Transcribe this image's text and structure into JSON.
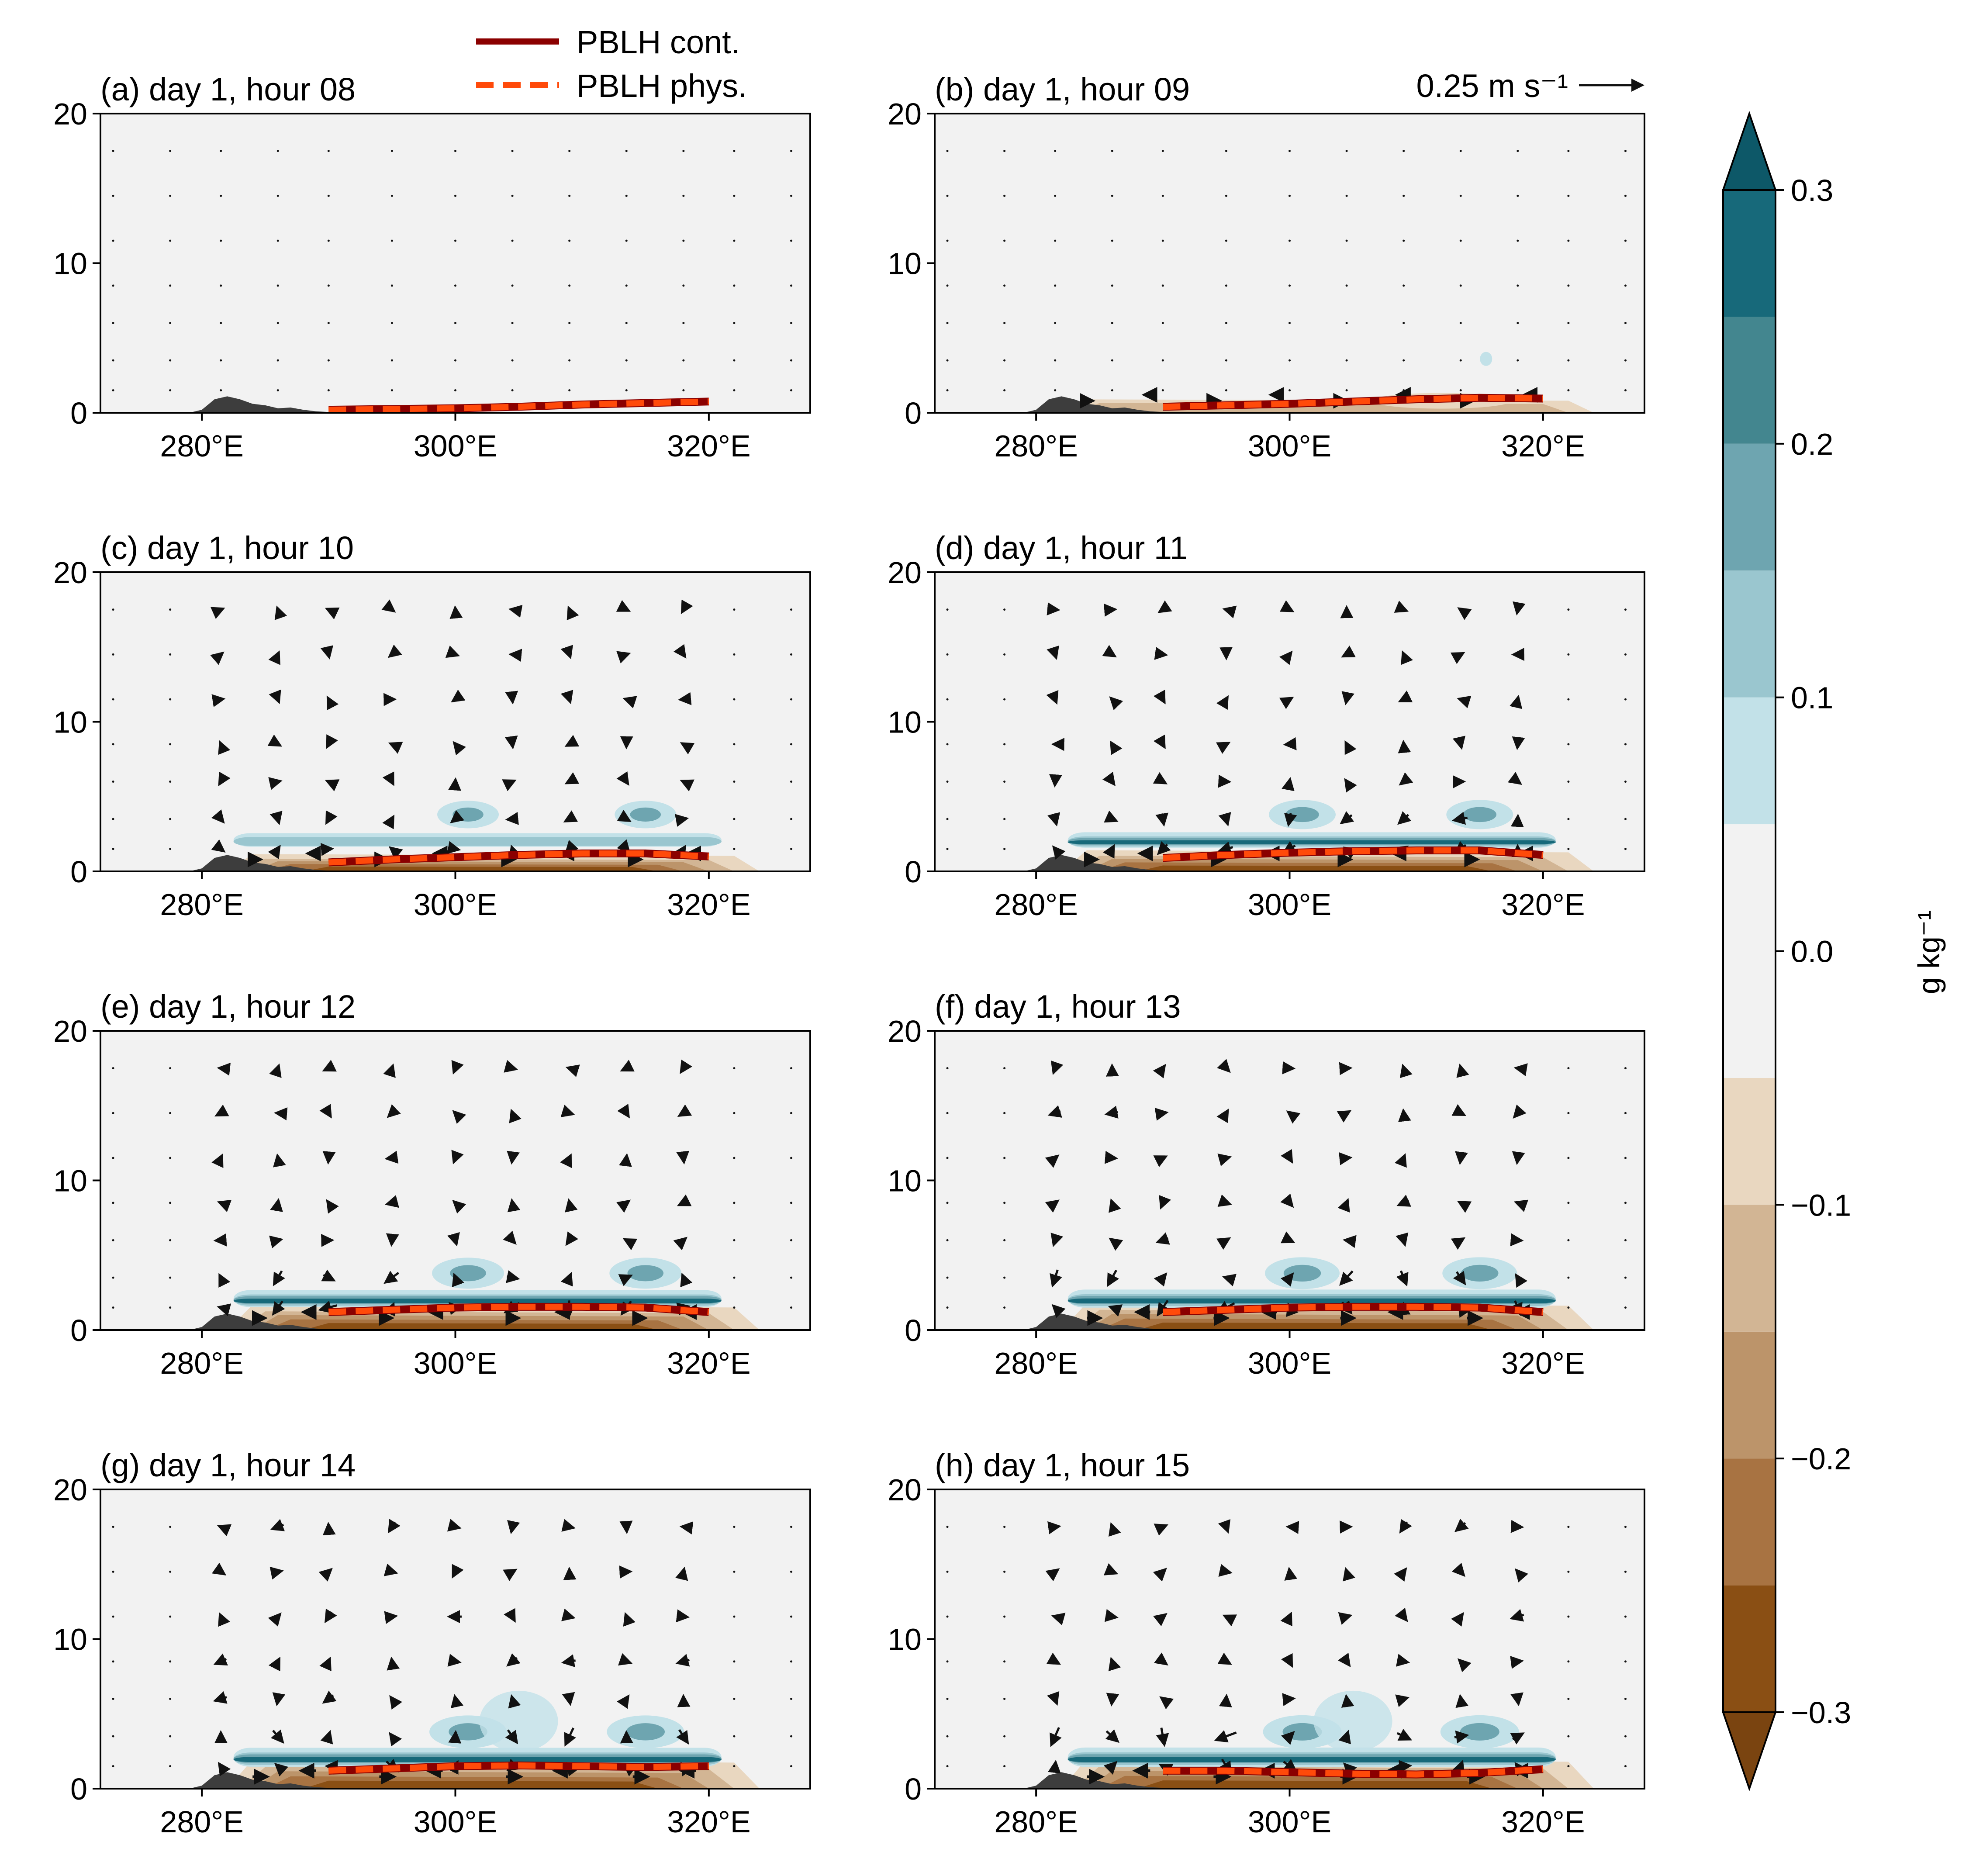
{
  "legend": {
    "items": [
      {
        "label": "PBLH cont.",
        "color": "#8b0000",
        "style": "solid"
      },
      {
        "label": "PBLH phys.",
        "color": "#ff4a0a",
        "style": "dashed"
      }
    ],
    "quiver_key": {
      "value": 0.25,
      "label": "0.25 m s⁻¹"
    }
  },
  "colorbar": {
    "label": "g kg⁻¹",
    "ticks": [
      "0.3",
      "0.2",
      "0.1",
      "0.0",
      "−0.1",
      "−0.2",
      "−0.3"
    ],
    "tick_values": [
      0.3,
      0.2,
      0.1,
      0.0,
      -0.1,
      -0.2,
      -0.3
    ],
    "levels": [
      -0.3,
      -0.25,
      -0.2,
      -0.15,
      -0.1,
      -0.05,
      0.05,
      0.1,
      0.15,
      0.2,
      0.25,
      0.3
    ],
    "colors": [
      "#8a4f14",
      "#a87342",
      "#bc946a",
      "#d2b594",
      "#e9d7c0",
      "#f2f2f2",
      "#c2e1e8",
      "#9ac6cf",
      "#6ea5b0",
      "#43868f",
      "#17697a"
    ],
    "extend_low": "#7a4410",
    "extend_high": "#0d5868"
  },
  "chart_data": {
    "type": "contour",
    "x_ticks": [
      "280°E",
      "300°E",
      "320°E"
    ],
    "x_tick_values": [
      280,
      300,
      320
    ],
    "y_ticks": [
      "0",
      "10",
      "20"
    ],
    "y_tick_values": [
      0,
      10,
      20
    ],
    "xlim": [
      272,
      328
    ],
    "ylim": [
      0,
      20
    ],
    "terrain": {
      "x": [
        272,
        279,
        280,
        281,
        282,
        283,
        284,
        285,
        286,
        287,
        288,
        289,
        290,
        292,
        300,
        310,
        320,
        328
      ],
      "y": [
        0,
        0,
        0.2,
        0.9,
        1.1,
        0.9,
        0.6,
        0.5,
        0.3,
        0.35,
        0.2,
        0.1,
        0.05,
        0,
        0,
        0,
        0,
        0
      ]
    },
    "panels": [
      {
        "title": "(a) day 1, hour 08",
        "pblh_x": [
          290,
          295,
          300,
          305,
          310,
          315,
          320
        ],
        "pblh_y": [
          0.2,
          0.25,
          0.3,
          0.4,
          0.55,
          0.65,
          0.75
        ],
        "anomaly": 0.0
      },
      {
        "title": "(b) day 1, hour 09",
        "pblh_x": [
          290,
          295,
          300,
          305,
          310,
          315,
          320
        ],
        "pblh_y": [
          0.4,
          0.5,
          0.6,
          0.75,
          0.9,
          1.0,
          0.95
        ],
        "anomaly": 0.15
      },
      {
        "title": "(c) day 1, hour 10",
        "pblh_x": [
          290,
          295,
          300,
          305,
          310,
          315,
          320
        ],
        "pblh_y": [
          0.6,
          0.8,
          0.95,
          1.1,
          1.2,
          1.2,
          1.0
        ],
        "anomaly": 0.35
      },
      {
        "title": "(d) day 1, hour 11",
        "pblh_x": [
          290,
          295,
          300,
          305,
          310,
          315,
          320
        ],
        "pblh_y": [
          0.9,
          1.1,
          1.25,
          1.35,
          1.4,
          1.4,
          1.1
        ],
        "anomaly": 0.55
      },
      {
        "title": "(e) day 1, hour 12",
        "pblh_x": [
          290,
          295,
          300,
          305,
          310,
          315,
          320
        ],
        "pblh_y": [
          1.2,
          1.35,
          1.5,
          1.55,
          1.55,
          1.5,
          1.2
        ],
        "anomaly": 0.75
      },
      {
        "title": "(f) day 1, hour 13",
        "pblh_x": [
          290,
          295,
          300,
          305,
          310,
          315,
          320
        ],
        "pblh_y": [
          1.2,
          1.35,
          1.5,
          1.55,
          1.55,
          1.5,
          1.2
        ],
        "anomaly": 0.85
      },
      {
        "title": "(g) day 1, hour 14",
        "pblh_x": [
          290,
          295,
          300,
          305,
          310,
          315,
          320
        ],
        "pblh_y": [
          1.2,
          1.35,
          1.5,
          1.55,
          1.5,
          1.45,
          1.5
        ],
        "anomaly": 0.95
      },
      {
        "title": "(h) day 1, hour 15",
        "pblh_x": [
          290,
          295,
          300,
          305,
          310,
          315,
          320
        ],
        "pblh_y": [
          1.2,
          1.2,
          1.1,
          1.0,
          0.95,
          1.05,
          1.3
        ],
        "anomaly": 1.0
      }
    ]
  }
}
